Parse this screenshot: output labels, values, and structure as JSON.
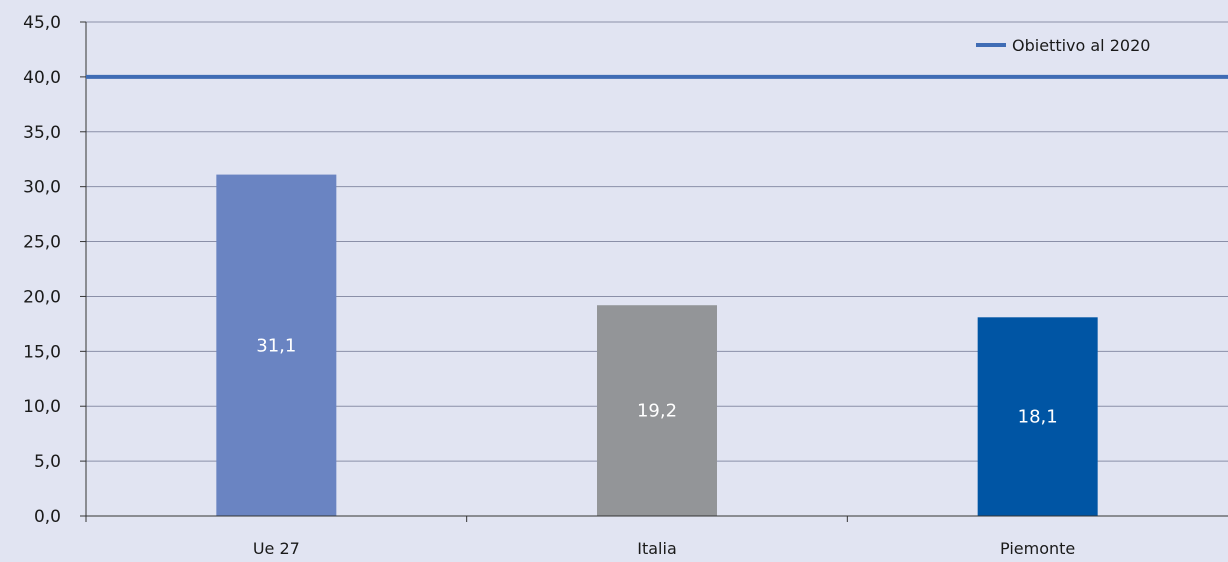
{
  "chart_data": {
    "type": "bar",
    "categories": [
      "Ue 27",
      "Italia",
      "Piemonte"
    ],
    "values": [
      31.1,
      19.2,
      18.1
    ],
    "value_labels": [
      "31,1",
      "19,2",
      "18,1"
    ],
    "bar_colors": [
      "#6a84c2",
      "#939598",
      "#0055a4"
    ],
    "ylim": [
      0,
      45
    ],
    "yticks": [
      0,
      5,
      10,
      15,
      20,
      25,
      30,
      35,
      40,
      45
    ],
    "ytick_labels": [
      "0,0",
      "5,0",
      "10,0",
      "15,0",
      "20,0",
      "25,0",
      "30,0",
      "35,0",
      "40,0",
      "45,0"
    ],
    "grid": true,
    "reference_line": {
      "name": "Obiettivo al 2020",
      "value": 40,
      "color": "#3f6cb5"
    },
    "legend": {
      "position": "top-right",
      "entries": [
        "Obiettivo al 2020"
      ]
    },
    "title": "",
    "xlabel": "",
    "ylabel": "",
    "background_color": "#e1e4f2",
    "grid_color": "#8a8fa8"
  }
}
